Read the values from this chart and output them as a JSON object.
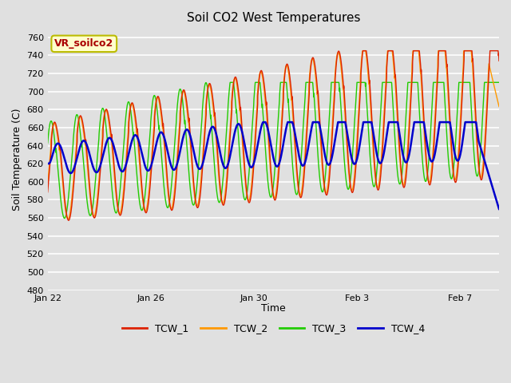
{
  "title": "Soil CO2 West Temperatures",
  "xlabel": "Time",
  "ylabel": "Soil Temperature (C)",
  "ylim": [
    480,
    770
  ],
  "yticks": [
    480,
    500,
    520,
    540,
    560,
    580,
    600,
    620,
    640,
    660,
    680,
    700,
    720,
    740,
    760
  ],
  "xtick_labels": [
    "Jan 22",
    "Jan 26",
    "Jan 30",
    "Feb 3",
    "Feb 7"
  ],
  "xtick_positions": [
    0,
    4,
    8,
    12,
    16
  ],
  "annotation_text": "VR_soilco2",
  "annotation_color": "#aa0000",
  "annotation_bg": "#ffffcc",
  "annotation_border": "#bbbb00",
  "bg_color": "#e0e0e0",
  "plot_bg": "#e0e0e0",
  "colors": {
    "TCW_1": "#dd2200",
    "TCW_2": "#ff9900",
    "TCW_3": "#22cc00",
    "TCW_4": "#0000cc"
  },
  "lw_1": 1.0,
  "lw_2": 1.0,
  "lw_3": 1.0,
  "lw_4": 1.8
}
